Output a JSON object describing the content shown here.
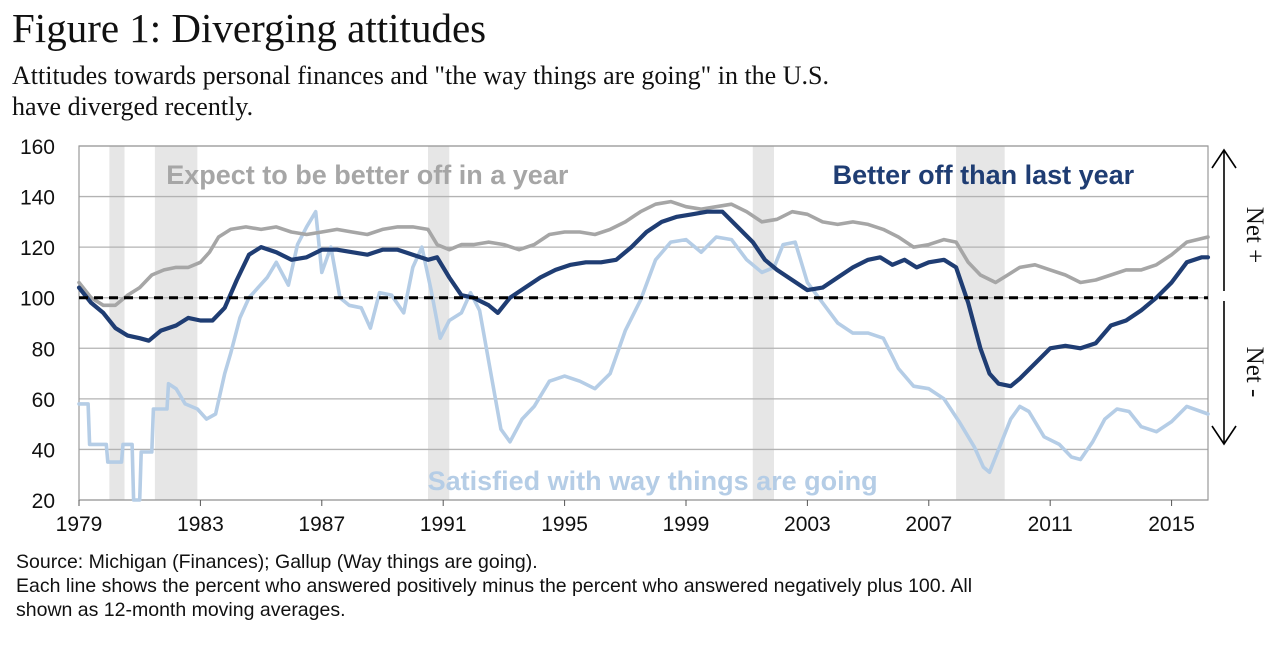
{
  "title": "Figure 1: Diverging attitudes",
  "subtitle_line1": "Attitudes towards personal finances and \"the way things are going\" in the U.S.",
  "subtitle_line2": "have diverged recently.",
  "source": "Source: Michigan (Finances); Gallup (Way things are going).",
  "note_line1": "Each line shows the percent who answered positively minus the percent who answered negatively plus 100. All",
  "note_line2": "shown as 12-month moving averages.",
  "net_plus_label": "Net +",
  "net_minus_label": "Net -",
  "colors": {
    "expect": "#a6a6a6",
    "better_off": "#1f3d73",
    "satisfied": "#b5cde6",
    "recession": "#e6e6e6",
    "grid": "#b3b3b3",
    "reference": "#000000"
  },
  "chart_data": {
    "type": "line",
    "xlim": [
      1979,
      2016.2
    ],
    "ylim": [
      20,
      160
    ],
    "y_ticks": [
      20,
      40,
      60,
      80,
      100,
      120,
      140,
      160
    ],
    "x_ticks": [
      1979,
      1983,
      1987,
      1991,
      1995,
      1999,
      2003,
      2007,
      2011,
      2015
    ],
    "grid": "horizontal",
    "reference_line": 100,
    "recessions": [
      [
        1980.0,
        1980.5
      ],
      [
        1981.5,
        1982.9
      ],
      [
        1990.5,
        1991.2
      ],
      [
        2001.2,
        2001.9
      ],
      [
        2007.9,
        2009.5
      ]
    ],
    "series": [
      {
        "name": "Expect to be better off in a year",
        "color_key": "expect",
        "points": [
          [
            1979.0,
            106
          ],
          [
            1979.4,
            100
          ],
          [
            1979.8,
            97
          ],
          [
            1980.2,
            97
          ],
          [
            1980.6,
            101
          ],
          [
            1981.0,
            104
          ],
          [
            1981.4,
            109
          ],
          [
            1981.8,
            111
          ],
          [
            1982.2,
            112
          ],
          [
            1982.6,
            112
          ],
          [
            1983.0,
            114
          ],
          [
            1983.3,
            118
          ],
          [
            1983.6,
            124
          ],
          [
            1984.0,
            127
          ],
          [
            1984.5,
            128
          ],
          [
            1985.0,
            127
          ],
          [
            1985.5,
            128
          ],
          [
            1986.0,
            126
          ],
          [
            1986.5,
            125
          ],
          [
            1987.0,
            126
          ],
          [
            1987.5,
            127
          ],
          [
            1988.0,
            126
          ],
          [
            1988.5,
            125
          ],
          [
            1989.0,
            127
          ],
          [
            1989.5,
            128
          ],
          [
            1990.0,
            128
          ],
          [
            1990.5,
            127
          ],
          [
            1990.8,
            121
          ],
          [
            1991.2,
            119
          ],
          [
            1991.6,
            121
          ],
          [
            1992.0,
            121
          ],
          [
            1992.5,
            122
          ],
          [
            1993.0,
            121
          ],
          [
            1993.5,
            119
          ],
          [
            1994.0,
            121
          ],
          [
            1994.5,
            125
          ],
          [
            1995.0,
            126
          ],
          [
            1995.5,
            126
          ],
          [
            1996.0,
            125
          ],
          [
            1996.5,
            127
          ],
          [
            1997.0,
            130
          ],
          [
            1997.5,
            134
          ],
          [
            1998.0,
            137
          ],
          [
            1998.5,
            138
          ],
          [
            1999.0,
            136
          ],
          [
            1999.5,
            135
          ],
          [
            2000.0,
            136
          ],
          [
            2000.5,
            137
          ],
          [
            2001.0,
            134
          ],
          [
            2001.5,
            130
          ],
          [
            2002.0,
            131
          ],
          [
            2002.5,
            134
          ],
          [
            2003.0,
            133
          ],
          [
            2003.5,
            130
          ],
          [
            2004.0,
            129
          ],
          [
            2004.5,
            130
          ],
          [
            2005.0,
            129
          ],
          [
            2005.5,
            127
          ],
          [
            2006.0,
            124
          ],
          [
            2006.5,
            120
          ],
          [
            2007.0,
            121
          ],
          [
            2007.5,
            123
          ],
          [
            2007.9,
            122
          ],
          [
            2008.3,
            114
          ],
          [
            2008.7,
            109
          ],
          [
            2009.2,
            106
          ],
          [
            2009.6,
            109
          ],
          [
            2010.0,
            112
          ],
          [
            2010.5,
            113
          ],
          [
            2011.0,
            111
          ],
          [
            2011.5,
            109
          ],
          [
            2012.0,
            106
          ],
          [
            2012.5,
            107
          ],
          [
            2013.0,
            109
          ],
          [
            2013.5,
            111
          ],
          [
            2014.0,
            111
          ],
          [
            2014.5,
            113
          ],
          [
            2015.0,
            117
          ],
          [
            2015.5,
            122
          ],
          [
            2016.2,
            124
          ]
        ]
      },
      {
        "name": "Better off than last year",
        "color_key": "better_off",
        "points": [
          [
            1979.0,
            104
          ],
          [
            1979.4,
            98
          ],
          [
            1979.8,
            94
          ],
          [
            1980.2,
            88
          ],
          [
            1980.6,
            85
          ],
          [
            1981.0,
            84
          ],
          [
            1981.3,
            83
          ],
          [
            1981.7,
            87
          ],
          [
            1982.2,
            89
          ],
          [
            1982.6,
            92
          ],
          [
            1983.0,
            91
          ],
          [
            1983.4,
            91
          ],
          [
            1983.8,
            96
          ],
          [
            1984.2,
            107
          ],
          [
            1984.6,
            117
          ],
          [
            1985.0,
            120
          ],
          [
            1985.5,
            118
          ],
          [
            1986.0,
            115
          ],
          [
            1986.5,
            116
          ],
          [
            1987.0,
            119
          ],
          [
            1987.5,
            119
          ],
          [
            1988.0,
            118
          ],
          [
            1988.5,
            117
          ],
          [
            1989.0,
            119
          ],
          [
            1989.5,
            119
          ],
          [
            1990.0,
            117
          ],
          [
            1990.5,
            115
          ],
          [
            1990.8,
            116
          ],
          [
            1991.2,
            108
          ],
          [
            1991.6,
            101
          ],
          [
            1992.0,
            100
          ],
          [
            1992.5,
            97
          ],
          [
            1992.8,
            94
          ],
          [
            1993.2,
            100
          ],
          [
            1993.7,
            104
          ],
          [
            1994.2,
            108
          ],
          [
            1994.7,
            111
          ],
          [
            1995.2,
            113
          ],
          [
            1995.7,
            114
          ],
          [
            1996.2,
            114
          ],
          [
            1996.7,
            115
          ],
          [
            1997.2,
            120
          ],
          [
            1997.7,
            126
          ],
          [
            1998.2,
            130
          ],
          [
            1998.7,
            132
          ],
          [
            1999.2,
            133
          ],
          [
            1999.7,
            134
          ],
          [
            2000.2,
            134
          ],
          [
            2000.7,
            128
          ],
          [
            2001.2,
            122
          ],
          [
            2001.6,
            115
          ],
          [
            2002.0,
            111
          ],
          [
            2002.5,
            107
          ],
          [
            2003.0,
            103
          ],
          [
            2003.5,
            104
          ],
          [
            2004.0,
            108
          ],
          [
            2004.5,
            112
          ],
          [
            2005.0,
            115
          ],
          [
            2005.4,
            116
          ],
          [
            2005.8,
            113
          ],
          [
            2006.2,
            115
          ],
          [
            2006.6,
            112
          ],
          [
            2007.0,
            114
          ],
          [
            2007.5,
            115
          ],
          [
            2007.9,
            112
          ],
          [
            2008.3,
            98
          ],
          [
            2008.7,
            80
          ],
          [
            2009.0,
            70
          ],
          [
            2009.3,
            66
          ],
          [
            2009.7,
            65
          ],
          [
            2010.0,
            68
          ],
          [
            2010.5,
            74
          ],
          [
            2011.0,
            80
          ],
          [
            2011.5,
            81
          ],
          [
            2012.0,
            80
          ],
          [
            2012.5,
            82
          ],
          [
            2013.0,
            89
          ],
          [
            2013.5,
            91
          ],
          [
            2014.0,
            95
          ],
          [
            2014.5,
            100
          ],
          [
            2015.0,
            106
          ],
          [
            2015.5,
            114
          ],
          [
            2016.0,
            116
          ],
          [
            2016.2,
            116
          ]
        ]
      },
      {
        "name": "Satisfied with way things are going",
        "color_key": "satisfied",
        "points": [
          [
            1979.0,
            58
          ],
          [
            1979.3,
            58
          ],
          [
            1979.35,
            42
          ],
          [
            1979.9,
            42
          ],
          [
            1979.95,
            35
          ],
          [
            1980.4,
            35
          ],
          [
            1980.45,
            42
          ],
          [
            1980.75,
            42
          ],
          [
            1980.8,
            20
          ],
          [
            1981.0,
            20
          ],
          [
            1981.05,
            39
          ],
          [
            1981.4,
            39
          ],
          [
            1981.45,
            56
          ],
          [
            1981.9,
            56
          ],
          [
            1981.95,
            66
          ],
          [
            1982.2,
            64
          ],
          [
            1982.5,
            58
          ],
          [
            1982.9,
            56
          ],
          [
            1983.2,
            52
          ],
          [
            1983.5,
            54
          ],
          [
            1983.8,
            70
          ],
          [
            1984.0,
            78
          ],
          [
            1984.3,
            92
          ],
          [
            1984.6,
            100
          ],
          [
            1984.9,
            104
          ],
          [
            1985.2,
            108
          ],
          [
            1985.5,
            114
          ],
          [
            1985.9,
            105
          ],
          [
            1986.2,
            121
          ],
          [
            1986.5,
            128
          ],
          [
            1986.8,
            134
          ],
          [
            1987.0,
            110
          ],
          [
            1987.3,
            120
          ],
          [
            1987.6,
            100
          ],
          [
            1987.9,
            97
          ],
          [
            1988.3,
            96
          ],
          [
            1988.6,
            88
          ],
          [
            1988.9,
            102
          ],
          [
            1989.3,
            101
          ],
          [
            1989.7,
            94
          ],
          [
            1990.0,
            112
          ],
          [
            1990.3,
            120
          ],
          [
            1990.6,
            103
          ],
          [
            1990.9,
            84
          ],
          [
            1991.2,
            91
          ],
          [
            1991.6,
            94
          ],
          [
            1991.9,
            102
          ],
          [
            1992.2,
            95
          ],
          [
            1992.6,
            68
          ],
          [
            1992.9,
            48
          ],
          [
            1993.2,
            43
          ],
          [
            1993.6,
            52
          ],
          [
            1994.0,
            57
          ],
          [
            1994.5,
            67
          ],
          [
            1995.0,
            69
          ],
          [
            1995.5,
            67
          ],
          [
            1996.0,
            64
          ],
          [
            1996.5,
            70
          ],
          [
            1997.0,
            87
          ],
          [
            1997.5,
            99
          ],
          [
            1998.0,
            115
          ],
          [
            1998.5,
            122
          ],
          [
            1999.0,
            123
          ],
          [
            1999.5,
            118
          ],
          [
            2000.0,
            124
          ],
          [
            2000.5,
            123
          ],
          [
            2001.0,
            115
          ],
          [
            2001.5,
            110
          ],
          [
            2001.9,
            112
          ],
          [
            2002.2,
            121
          ],
          [
            2002.6,
            122
          ],
          [
            2003.0,
            106
          ],
          [
            2003.5,
            98
          ],
          [
            2004.0,
            90
          ],
          [
            2004.5,
            86
          ],
          [
            2005.0,
            86
          ],
          [
            2005.5,
            84
          ],
          [
            2006.0,
            72
          ],
          [
            2006.5,
            65
          ],
          [
            2007.0,
            64
          ],
          [
            2007.5,
            60
          ],
          [
            2008.0,
            51
          ],
          [
            2008.5,
            41
          ],
          [
            2008.8,
            33
          ],
          [
            2009.0,
            31
          ],
          [
            2009.3,
            40
          ],
          [
            2009.7,
            52
          ],
          [
            2010.0,
            57
          ],
          [
            2010.3,
            55
          ],
          [
            2010.8,
            45
          ],
          [
            2011.3,
            42
          ],
          [
            2011.7,
            37
          ],
          [
            2012.0,
            36
          ],
          [
            2012.4,
            43
          ],
          [
            2012.8,
            52
          ],
          [
            2013.2,
            56
          ],
          [
            2013.6,
            55
          ],
          [
            2014.0,
            49
          ],
          [
            2014.5,
            47
          ],
          [
            2015.0,
            51
          ],
          [
            2015.5,
            57
          ],
          [
            2016.2,
            54
          ]
        ]
      }
    ],
    "annotations": [
      {
        "text": "Expect to be better off in a year",
        "x": 1988.5,
        "y": 149,
        "color_key": "expect"
      },
      {
        "text": "Better off than last year",
        "x": 2008.8,
        "y": 149,
        "color_key": "better_off"
      },
      {
        "text": "Satisfied with way things are going",
        "x": 1997.9,
        "y": 28,
        "color_key": "satisfied"
      }
    ]
  }
}
